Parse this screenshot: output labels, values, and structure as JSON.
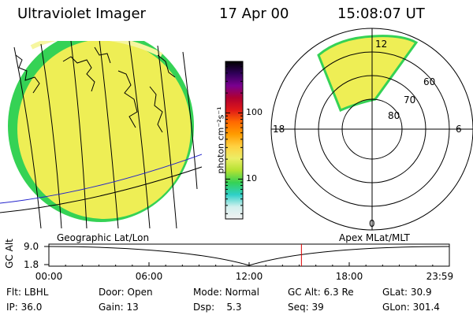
{
  "header": {
    "instrument": "Ultraviolet Imager",
    "date": "17 Apr 00",
    "time": "15:08:07 UT"
  },
  "colorbar": {
    "unit_label": "photon cm⁻²s⁻¹",
    "ticks": [
      "100",
      "10"
    ],
    "ticks_values": [
      100,
      10
    ],
    "range": [
      2.5,
      600
    ],
    "scale": "log",
    "colors": [
      "#f2f2f2",
      "#d2f0ee",
      "#2ed0c8",
      "#35d255",
      "#b4e232",
      "#ecee66",
      "#ffd040",
      "#ff9c00",
      "#ff6a00",
      "#e01818",
      "#b00030",
      "#7a0090",
      "#30005a",
      "#000000"
    ]
  },
  "polar": {
    "mlt_labels": {
      "top": "12",
      "left": "18",
      "right": "6",
      "bottom": "0"
    },
    "lat_labels": [
      "60",
      "70",
      "80"
    ],
    "lat_values": [
      60,
      70,
      80
    ]
  },
  "timeline": {
    "left_label": "Geographic Lat/Lon",
    "right_label": "Apex MLat/MLT",
    "axis_title": "GC Alt",
    "y_ticks": [
      "9.0",
      "1.8"
    ],
    "x_ticks": [
      "00:00",
      "06:00",
      "12:00",
      "18:00",
      "23:59"
    ],
    "current_marker_hours": 15.135,
    "marker_color": "#dd0000"
  },
  "status": {
    "row1": [
      "Flt: LBHL",
      "Door: Open",
      "Mode: Normal",
      "GC Alt: 6.3 Re",
      "GLat: 30.9"
    ],
    "row2": [
      "IP: 36.0",
      "Gain: 13",
      "Dsp:    5.3",
      "Seq: 39",
      "GLon: 301.4"
    ]
  },
  "colors": {
    "image_fill": "#eeee55",
    "image_edge": "#35d255",
    "orbit_line": "#2222cc"
  }
}
